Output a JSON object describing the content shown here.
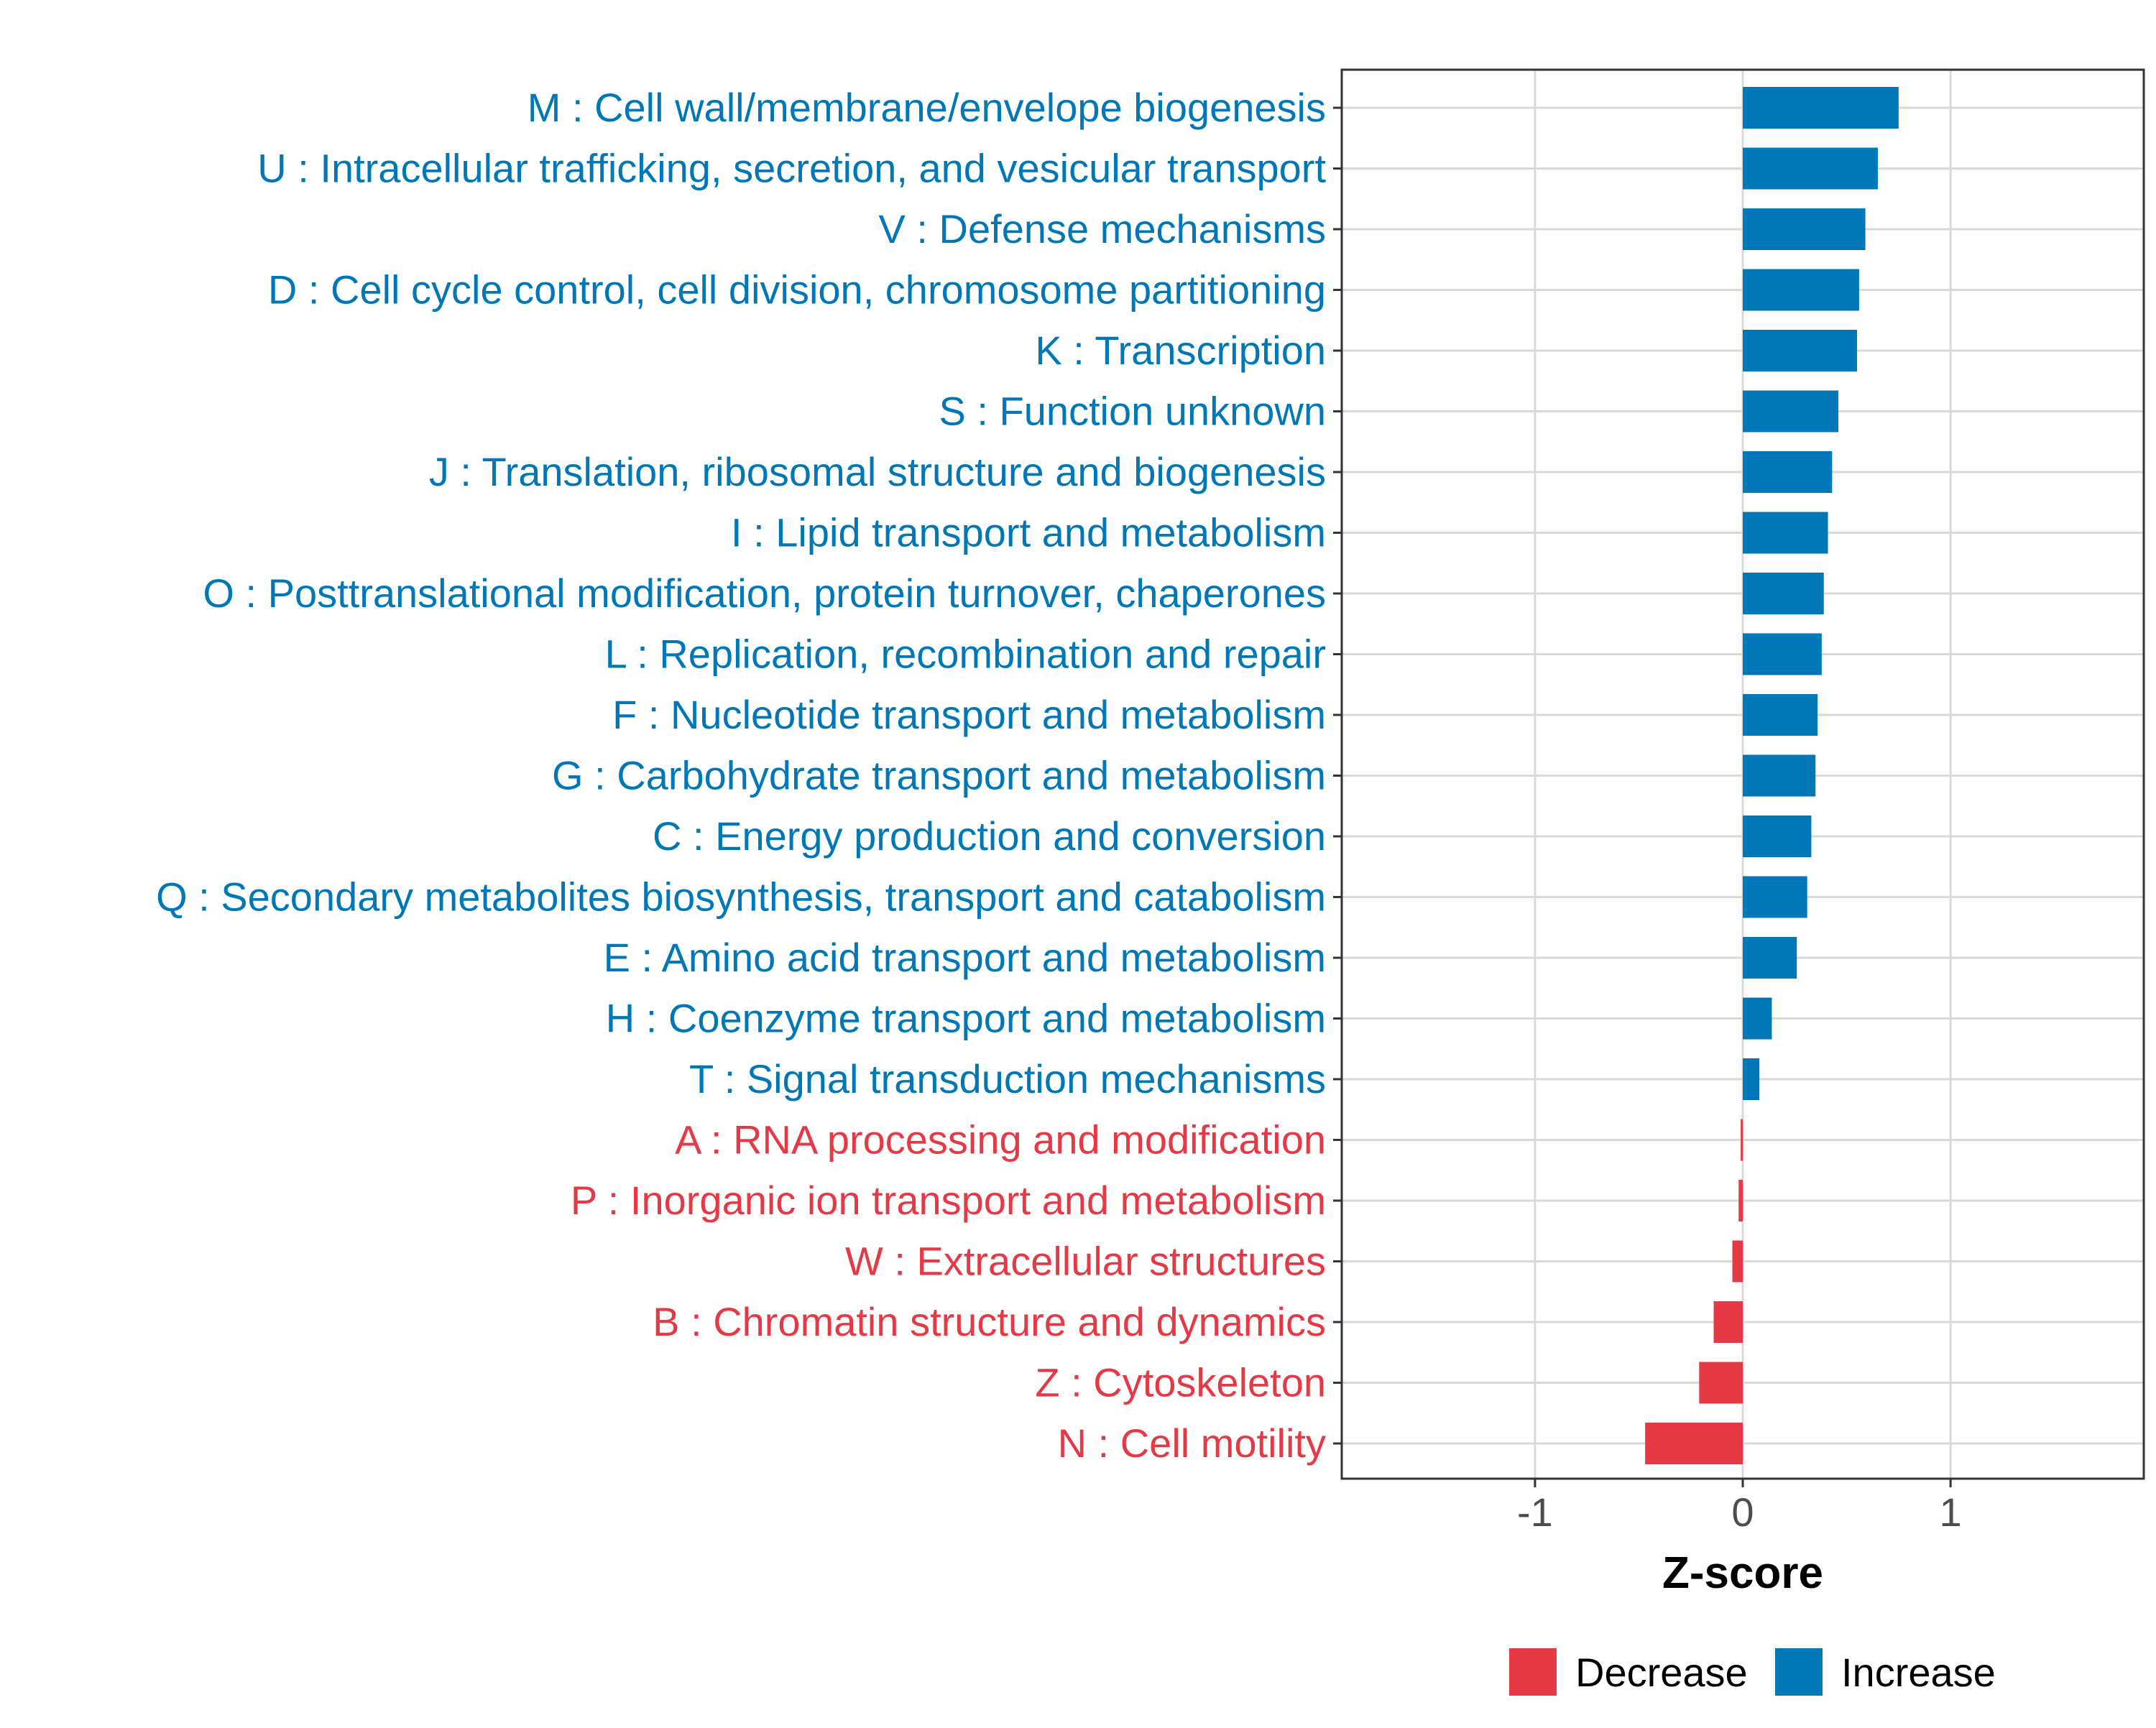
{
  "chart_data": {
    "type": "bar",
    "orientation": "horizontal",
    "title": "",
    "xlabel": "Z-score",
    "ylabel": "",
    "xlim": [
      -1.93,
      1.93
    ],
    "xticks": [
      -1,
      0,
      1
    ],
    "xtick_labels": [
      "-1",
      "0",
      "1"
    ],
    "grid": true,
    "legend_position": "bottom",
    "legend": [
      {
        "name": "Decrease",
        "color": "#E63946"
      },
      {
        "name": "Increase",
        "color": "#0077B6"
      }
    ],
    "colors": {
      "Increase": "#0077B6",
      "Decrease": "#E63946"
    },
    "bars": [
      {
        "label": "M : Cell wall/membrane/envelope biogenesis",
        "value": 0.75,
        "direction": "Increase"
      },
      {
        "label": "U : Intracellular trafficking, secretion, and vesicular transport",
        "value": 0.65,
        "direction": "Increase"
      },
      {
        "label": "V : Defense mechanisms",
        "value": 0.59,
        "direction": "Increase"
      },
      {
        "label": "D : Cell cycle control, cell division, chromosome partitioning",
        "value": 0.56,
        "direction": "Increase"
      },
      {
        "label": "K : Transcription",
        "value": 0.55,
        "direction": "Increase"
      },
      {
        "label": "S : Function unknown",
        "value": 0.46,
        "direction": "Increase"
      },
      {
        "label": "J : Translation, ribosomal structure and biogenesis",
        "value": 0.43,
        "direction": "Increase"
      },
      {
        "label": "I : Lipid transport and metabolism",
        "value": 0.41,
        "direction": "Increase"
      },
      {
        "label": "O : Posttranslational modification, protein turnover, chaperones",
        "value": 0.39,
        "direction": "Increase"
      },
      {
        "label": "L : Replication, recombination and repair",
        "value": 0.38,
        "direction": "Increase"
      },
      {
        "label": "F : Nucleotide transport and metabolism",
        "value": 0.36,
        "direction": "Increase"
      },
      {
        "label": "G : Carbohydrate transport and metabolism",
        "value": 0.35,
        "direction": "Increase"
      },
      {
        "label": "C : Energy production and conversion",
        "value": 0.33,
        "direction": "Increase"
      },
      {
        "label": "Q : Secondary metabolites biosynthesis, transport and catabolism",
        "value": 0.31,
        "direction": "Increase"
      },
      {
        "label": "E : Amino acid transport and metabolism",
        "value": 0.26,
        "direction": "Increase"
      },
      {
        "label": "H : Coenzyme transport and metabolism",
        "value": 0.14,
        "direction": "Increase"
      },
      {
        "label": "T : Signal transduction mechanisms",
        "value": 0.08,
        "direction": "Increase"
      },
      {
        "label": "A : RNA processing and modification",
        "value": -0.01,
        "direction": "Decrease"
      },
      {
        "label": "P : Inorganic ion transport and metabolism",
        "value": -0.02,
        "direction": "Decrease"
      },
      {
        "label": "W : Extracellular structures",
        "value": -0.05,
        "direction": "Decrease"
      },
      {
        "label": "B : Chromatin structure and dynamics",
        "value": -0.14,
        "direction": "Decrease"
      },
      {
        "label": "Z : Cytoskeleton",
        "value": -0.21,
        "direction": "Decrease"
      },
      {
        "label": "N : Cell motility",
        "value": -0.47,
        "direction": "Decrease"
      }
    ]
  }
}
